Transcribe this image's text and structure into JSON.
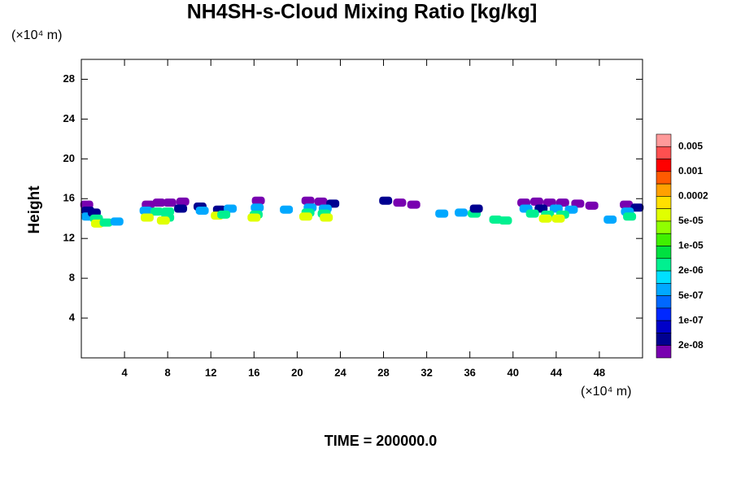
{
  "chart_data": {
    "type": "contour",
    "title": "NH4SH-s-Cloud Mixing Ratio [kg/kg]",
    "ylabel": "Height",
    "xunit": "(×10⁴ m)",
    "yunit": "(×10⁴ m)",
    "footer": "TIME = 200000.0",
    "xlim": [
      0,
      52
    ],
    "ylim": [
      0,
      30
    ],
    "xticks": [
      4,
      8,
      12,
      16,
      20,
      24,
      28,
      32,
      36,
      40,
      44,
      48
    ],
    "yticks": [
      4,
      8,
      12,
      16,
      20,
      24,
      28
    ],
    "levels": [
      0.005,
      0.001,
      0.0002,
      {
        "value": 5e-05,
        "label": "5e-05"
      },
      {
        "value": 1e-05,
        "label": "1e-05"
      },
      {
        "value": 2e-06,
        "label": "2e-06"
      },
      {
        "value": 5e-07,
        "label": "5e-07"
      },
      {
        "value": 1e-07,
        "label": "1e-07"
      },
      {
        "value": 2e-08,
        "label": "2e-08"
      }
    ],
    "colorbar_colors": [
      "#ff9a9a",
      "#ff5050",
      "#ff0000",
      "#ff5a00",
      "#ffa000",
      "#ffe000",
      "#e0ff00",
      "#90ff00",
      "#40f000",
      "#00e040",
      "#00f090",
      "#00e0ff",
      "#00a8ff",
      "#0068ff",
      "#0028ff",
      "#0000c8",
      "#000090",
      "#7800b0"
    ],
    "x": [
      0.5,
      0.6,
      0.6,
      1.2,
      1.4,
      1.5,
      2.3,
      3.3,
      6.2,
      7.2,
      8.2,
      9.4,
      6.0,
      7.0,
      8.0,
      9.2,
      6.1,
      8.0,
      7.6,
      11.0,
      11.2,
      12.8,
      13.8,
      12.6,
      13.2,
      16.4,
      16.3,
      16.2,
      16.0,
      19.0,
      21.0,
      22.2,
      23.3,
      21.2,
      22.6,
      21.0,
      22.5,
      20.8,
      22.7,
      29.5,
      30.8,
      28.2,
      33.4,
      35.2,
      36.4,
      36.6,
      38.4,
      39.3,
      41,
      42.2,
      43.4,
      44.6,
      46.0,
      47.3,
      41.2,
      42.6,
      44.0,
      45.4,
      41.8,
      43.2,
      44.6,
      43.0,
      44.2,
      49.0,
      50.5,
      51.5,
      50.6,
      50.8
    ],
    "y": [
      15.4,
      14.8,
      14.2,
      14.6,
      14.0,
      13.5,
      13.6,
      13.7,
      15.4,
      15.6,
      15.6,
      15.7,
      14.8,
      14.7,
      14.7,
      15.0,
      14.1,
      14.1,
      13.8,
      15.2,
      14.8,
      14.9,
      15.0,
      14.3,
      14.4,
      15.8,
      15.1,
      14.4,
      14.1,
      14.9,
      15.8,
      15.7,
      15.5,
      15.1,
      15.0,
      14.6,
      14.5,
      14.2,
      14.1,
      15.6,
      15.4,
      15.8,
      14.5,
      14.6,
      14.5,
      15.0,
      13.9,
      13.8,
      15.6,
      15.7,
      15.6,
      15.6,
      15.5,
      15.3,
      15.0,
      15.0,
      15.0,
      14.9,
      14.5,
      14.4,
      14.4,
      14.0,
      14.0,
      13.9,
      15.4,
      15.1,
      14.7,
      14.2
    ],
    "values": [
      1e-08,
      5e-08,
      6e-07,
      5e-08,
      5e-06,
      6e-05,
      5e-06,
      6e-07,
      1e-08,
      1e-08,
      1e-08,
      1e-08,
      6e-07,
      5e-06,
      5e-06,
      5e-08,
      6e-05,
      5e-06,
      6e-05,
      5e-08,
      6e-07,
      5e-08,
      6e-07,
      6e-05,
      5e-06,
      1e-08,
      6e-07,
      5e-06,
      6e-05,
      6e-07,
      1e-08,
      1e-08,
      5e-08,
      6e-07,
      6e-07,
      5e-06,
      5e-06,
      6e-05,
      6e-05,
      1e-08,
      1e-08,
      5e-08,
      6e-07,
      6e-07,
      5e-06,
      5e-08,
      5e-06,
      5e-06,
      1e-08,
      1e-08,
      1e-08,
      1e-08,
      1e-08,
      1e-08,
      6e-07,
      5e-08,
      6e-07,
      6e-07,
      5e-06,
      5e-06,
      5e-06,
      6e-05,
      6e-05,
      6e-07,
      1e-08,
      5e-08,
      6e-07,
      5e-06
    ]
  }
}
